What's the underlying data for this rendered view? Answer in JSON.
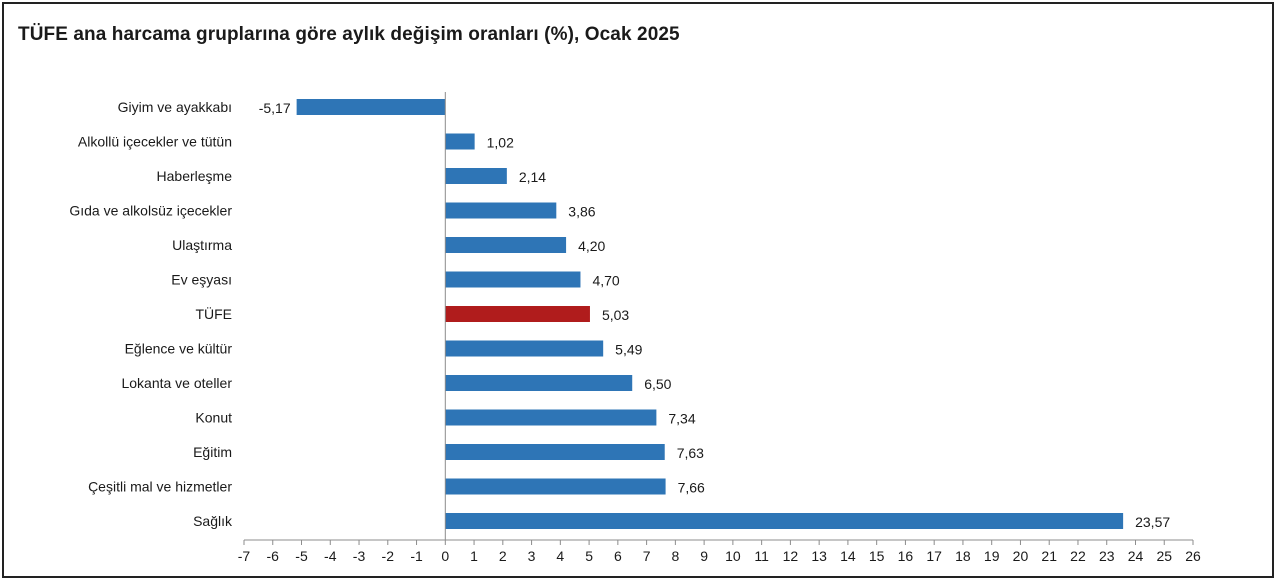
{
  "chart_data": {
    "type": "bar",
    "orientation": "horizontal",
    "title": "TÜFE ana harcama gruplarına göre aylık değişim oranları (%), Ocak 2025",
    "xlabel": "",
    "ylabel": "",
    "categories": [
      "Giyim ve ayakkabı",
      "Alkollü içecekler ve tütün",
      "Haberleşme",
      "Gıda ve alkolsüz içecekler",
      "Ulaştırma",
      "Ev eşyası",
      "TÜFE",
      "Eğlence ve kültür",
      "Lokanta ve oteller",
      "Konut",
      "Eğitim",
      "Çeşitli mal ve hizmetler",
      "Sağlık"
    ],
    "values": [
      -5.17,
      1.02,
      2.14,
      3.86,
      4.2,
      4.7,
      5.03,
      5.49,
      6.5,
      7.34,
      7.63,
      7.66,
      23.57
    ],
    "value_labels": [
      "-5,17",
      "1,02",
      "2,14",
      "3,86",
      "4,20",
      "4,70",
      "5,03",
      "5,49",
      "6,50",
      "7,34",
      "7,63",
      "7,66",
      "23,57"
    ],
    "highlight": "TÜFE",
    "xlim": [
      -7,
      26
    ],
    "xticks": [
      -7,
      -6,
      -5,
      -4,
      -3,
      -2,
      -1,
      0,
      1,
      2,
      3,
      4,
      5,
      6,
      7,
      8,
      9,
      10,
      11,
      12,
      13,
      14,
      15,
      16,
      17,
      18,
      19,
      20,
      21,
      22,
      23,
      24,
      25,
      26
    ],
    "grid": false,
    "legend": "none",
    "colors": {
      "bar": "#2e75b6",
      "highlight": "#b01c1c",
      "axis": "#8c8c8c",
      "text": "#1a1a1a"
    }
  }
}
